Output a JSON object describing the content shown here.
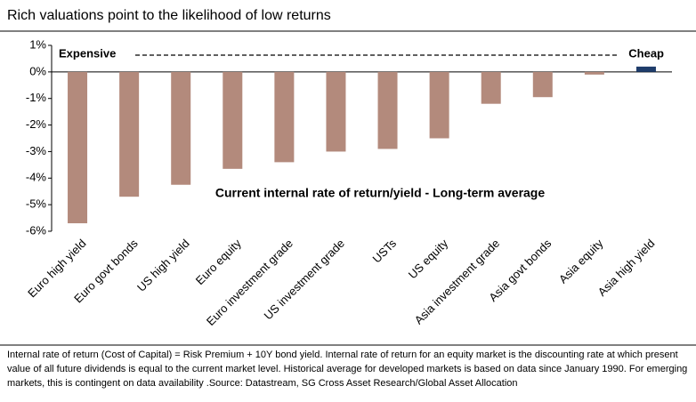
{
  "chart_data": {
    "type": "bar",
    "title": "Rich valuations point to the likelihood of low returns",
    "categories": [
      "Euro high yield",
      "Euro govt bonds",
      "US high yield",
      "Euro equity",
      "Euro investment grade",
      "US investment grade",
      "USTs",
      "US equity",
      "Asia investment grade",
      "Asia govt bonds",
      "Asia equity",
      "Asia high yield"
    ],
    "values": [
      -5.7,
      -4.7,
      -4.25,
      -3.65,
      -3.4,
      -3.0,
      -2.9,
      -2.5,
      -1.2,
      -0.95,
      -0.1,
      0.2
    ],
    "colors": [
      "#b38a7c",
      "#b38a7c",
      "#b38a7c",
      "#b38a7c",
      "#b38a7c",
      "#b38a7c",
      "#b38a7c",
      "#b38a7c",
      "#b38a7c",
      "#b38a7c",
      "#b38a7c",
      "#1f3d6b"
    ],
    "ylim": [
      -6,
      1
    ],
    "yticks": [
      {
        "value": 1,
        "label": "1%"
      },
      {
        "value": 0,
        "label": "0%"
      },
      {
        "value": -1,
        "label": "-1%"
      },
      {
        "value": -2,
        "label": "-2%"
      },
      {
        "value": -3,
        "label": "-3%"
      },
      {
        "value": -4,
        "label": "-4%"
      },
      {
        "value": -5,
        "label": "-5%"
      },
      {
        "value": -6,
        "label": "-6%"
      }
    ],
    "annotations": [
      "Expensive",
      "Cheap",
      "Current internal rate of return/yield - Long-term average"
    ],
    "footnote": "Internal rate of return (Cost of Capital) = Risk Premium + 10Y bond yield. Internal rate of return for an equity market is the discounting rate at which present value of all future dividends is equal to the current market level. Historical average for developed markets is based on data since January 1990. For emerging markets, this is contingent on data availability .Source: Datastream, SG Cross Asset Research/Global Asset Allocation"
  }
}
